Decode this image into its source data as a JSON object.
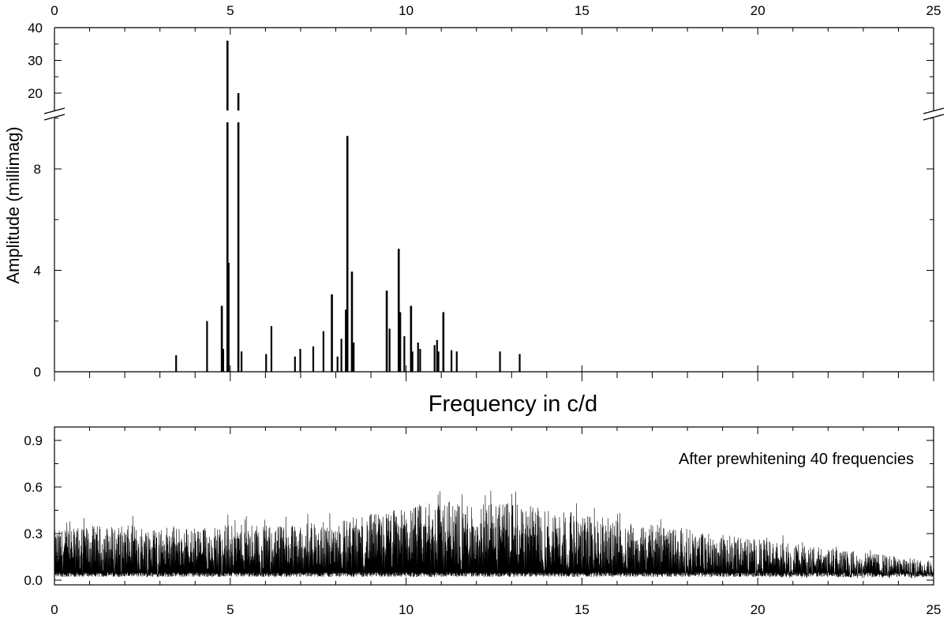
{
  "chart_data": [
    {
      "type": "bar",
      "panel": "top",
      "xlim": [
        0,
        25
      ],
      "x_ticks": [
        "0",
        "5",
        "10",
        "15",
        "20",
        "25"
      ],
      "y_ticks_lower": [
        "0",
        "4",
        "8"
      ],
      "y_ticks_upper": [
        "20",
        "30",
        "40"
      ],
      "ylim_lower": [
        0,
        11
      ],
      "ylim_upper": [
        15,
        40
      ],
      "y_axis_break": true,
      "ylabel": "Amplitude (millimag)",
      "xlabel": "Frequency in c/d",
      "series": [
        {
          "x": [
            3.46,
            4.34,
            4.76,
            4.8,
            4.92,
            4.95,
            5.23,
            5.32,
            6.02,
            6.17,
            6.84,
            6.99,
            7.36,
            7.65,
            7.89,
            8.05,
            8.16,
            8.29,
            8.33,
            8.46,
            8.51,
            9.45,
            9.53,
            9.79,
            9.83,
            9.95,
            10.14,
            10.18,
            10.34,
            10.4,
            10.81,
            10.88,
            10.92,
            11.06,
            11.29,
            11.44,
            12.67,
            13.23
          ],
          "values": [
            0.65,
            2.0,
            2.6,
            0.9,
            36.0,
            4.3,
            20.0,
            0.8,
            0.7,
            1.8,
            0.6,
            0.9,
            1.0,
            1.6,
            3.05,
            0.6,
            1.3,
            2.45,
            9.3,
            3.95,
            1.15,
            3.2,
            1.7,
            4.85,
            2.35,
            1.4,
            2.6,
            0.8,
            1.15,
            0.9,
            1.05,
            1.25,
            0.8,
            2.35,
            0.85,
            0.8,
            0.8,
            0.7
          ]
        }
      ]
    },
    {
      "type": "line",
      "panel": "bottom",
      "xlim": [
        0,
        25
      ],
      "ylim": [
        -0.03,
        1.0
      ],
      "x_ticks": [
        "0",
        "5",
        "10",
        "15",
        "20",
        "25"
      ],
      "y_ticks": [
        "0.0",
        "0.3",
        "0.6",
        "0.9"
      ],
      "annotation": "After prewhitening 40 frequencies",
      "envelope": {
        "x": [
          0,
          1,
          2,
          3,
          4,
          5,
          6,
          7,
          8,
          9,
          10,
          11,
          12,
          13,
          14,
          15,
          16,
          17,
          18,
          19,
          20,
          21,
          22,
          23,
          24,
          25
        ],
        "peak_y": [
          0.34,
          0.37,
          0.37,
          0.37,
          0.36,
          0.38,
          0.37,
          0.38,
          0.41,
          0.45,
          0.5,
          0.54,
          0.54,
          0.52,
          0.49,
          0.45,
          0.41,
          0.38,
          0.35,
          0.31,
          0.28,
          0.25,
          0.22,
          0.19,
          0.16,
          0.13
        ]
      }
    }
  ]
}
